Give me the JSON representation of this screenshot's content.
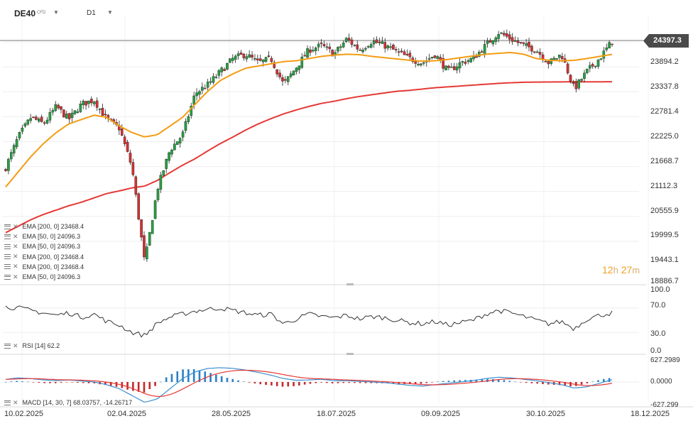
{
  "header": {
    "symbol": "DE40",
    "symbol_type": "CFD",
    "timeframe": "D1"
  },
  "last_price": "24397.3",
  "countdown": {
    "hours": "12",
    "h_unit": "h",
    "minutes": "27",
    "m_unit": "m"
  },
  "indicators": [
    {
      "label": "EMA [200, 0] 23468.4"
    },
    {
      "label": "EMA [50, 0] 24096.3"
    },
    {
      "label": "EMA [50, 0] 24096.3"
    },
    {
      "label": "EMA [200, 0] 23468.4"
    },
    {
      "label": "EMA [200, 0] 23468.4"
    },
    {
      "label": "EMA [50, 0] 24096.3"
    }
  ],
  "rsi_label": "RSI [14] 62.2",
  "macd_label": "MACD [14, 30, 7] 68.03757, -14.26717",
  "price_axis_labels": [
    "23894.2",
    "23337.8",
    "22781.4",
    "22225.0",
    "21668.7",
    "21112.3",
    "20555.9",
    "19999.5",
    "19443.1",
    "18886.7"
  ],
  "rsi_axis_labels": [
    "100.0",
    "70.0",
    "30.0",
    "0.0"
  ],
  "macd_axis_labels": [
    "627.2989",
    "0.0000",
    "-627.299"
  ],
  "date_labels": [
    "10.02.2025",
    "02.04.2025",
    "28.05.2025",
    "18.07.2025",
    "09.09.2025",
    "30.10.2025",
    "18.12.2025"
  ],
  "colors": {
    "bull": "#26a041",
    "bear": "#d63031",
    "ema50": "#f39c12",
    "ema200": "#e53935",
    "rsi": "#333333",
    "macd_line": "#3a8fd0",
    "macd_signal": "#e53935",
    "hist_pos": "#2a80c8",
    "hist_neg": "#c62828",
    "timer": "#f0a020"
  },
  "chart_data": {
    "type": "candlestick",
    "price_ylim": [
      18886.7,
      24954.0
    ],
    "weekly_closes": [
      21500,
      22200,
      22650,
      22500,
      22900,
      22600,
      22950,
      23050,
      22600,
      22400,
      21500,
      19300,
      21000,
      21900,
      22250,
      23200,
      23400,
      23700,
      24000,
      24100,
      23900,
      24000,
      23400,
      23800,
      24200,
      24300,
      24100,
      24450,
      24200,
      24400,
      24300,
      24150,
      24000,
      23900,
      24100,
      23700,
      23900,
      24000,
      24300,
      24600,
      24450,
      24300,
      24200,
      23900,
      24100,
      23300,
      23700,
      24000,
      24397
    ],
    "ema50_weekly": [
      21050,
      21400,
      21750,
      22050,
      22300,
      22500,
      22600,
      22700,
      22650,
      22450,
      22300,
      22200,
      22250,
      22450,
      22650,
      22950,
      23250,
      23500,
      23650,
      23780,
      23830,
      23880,
      23930,
      23950,
      24000,
      24050,
      24080,
      24100,
      24090,
      24050,
      24020,
      23990,
      23960,
      23940,
      23950,
      23980,
      24020,
      24060,
      24100,
      24120,
      24140,
      24100,
      24000,
      23960,
      23950,
      23960,
      24000,
      24050,
      24096
    ],
    "ema200_weekly": [
      20000,
      20150,
      20300,
      20420,
      20520,
      20620,
      20700,
      20800,
      20900,
      20960,
      21030,
      21070,
      21200,
      21380,
      21550,
      21700,
      21880,
      22050,
      22200,
      22360,
      22500,
      22620,
      22730,
      22820,
      22900,
      22970,
      23020,
      23080,
      23130,
      23170,
      23210,
      23250,
      23270,
      23300,
      23330,
      23350,
      23370,
      23390,
      23410,
      23430,
      23445,
      23455,
      23460,
      23462,
      23464,
      23465,
      23466,
      23467,
      23468
    ],
    "rsi_range": [
      0,
      100
    ],
    "rsi_weekly": [
      72,
      70,
      66,
      62,
      58,
      62,
      55,
      60,
      48,
      42,
      30,
      25,
      45,
      55,
      60,
      65,
      68,
      70,
      66,
      62,
      58,
      60,
      44,
      52,
      60,
      56,
      54,
      58,
      52,
      56,
      54,
      50,
      46,
      44,
      48,
      42,
      46,
      50,
      60,
      66,
      62,
      56,
      50,
      44,
      48,
      36,
      52,
      58,
      62
    ],
    "macd_range": [
      -627.299,
      627.2989
    ],
    "macd_weekly": [
      80,
      120,
      100,
      60,
      40,
      60,
      30,
      0,
      -80,
      -200,
      -400,
      -600,
      -500,
      -200,
      100,
      300,
      400,
      420,
      400,
      350,
      280,
      200,
      100,
      50,
      60,
      80,
      40,
      40,
      20,
      0,
      -20,
      -60,
      -100,
      -120,
      -80,
      -40,
      0,
      40,
      100,
      140,
      120,
      80,
      40,
      -20,
      -80,
      -180,
      -140,
      -40,
      68
    ]
  }
}
